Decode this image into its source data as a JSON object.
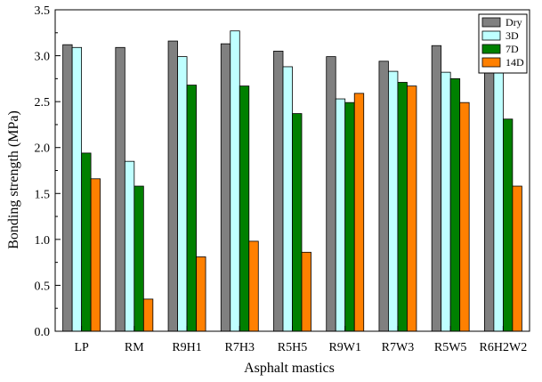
{
  "chart_data": {
    "type": "bar",
    "xlabel": "Asphalt mastics",
    "ylabel": "Bonding strength (MPa)",
    "ylim": [
      0,
      3.5
    ],
    "yticks": [
      "0.0",
      "0.5",
      "1.0",
      "1.5",
      "2.0",
      "2.5",
      "3.0",
      "3.5"
    ],
    "categories": [
      "LP",
      "RM",
      "R9H1",
      "R7H3",
      "R5H5",
      "R9W1",
      "R7W3",
      "R5W5",
      "R6H2W2"
    ],
    "grid": false,
    "legend_position": "top-right",
    "series": [
      {
        "name": "Dry",
        "color": "#808080",
        "values": [
          3.12,
          3.09,
          3.16,
          3.13,
          3.05,
          2.99,
          2.94,
          3.11,
          3.02
        ]
      },
      {
        "name": "3D",
        "color": "#bfffff",
        "values": [
          3.09,
          1.85,
          2.99,
          3.27,
          2.88,
          2.53,
          2.83,
          2.82,
          2.82
        ]
      },
      {
        "name": "7D",
        "color": "#008000",
        "values": [
          1.94,
          1.58,
          2.68,
          2.67,
          2.37,
          2.49,
          2.71,
          2.75,
          2.31
        ]
      },
      {
        "name": "14D",
        "color": "#ff8000",
        "values": [
          1.66,
          0.35,
          0.81,
          0.98,
          0.86,
          2.59,
          2.67,
          2.49,
          1.58
        ]
      }
    ]
  }
}
